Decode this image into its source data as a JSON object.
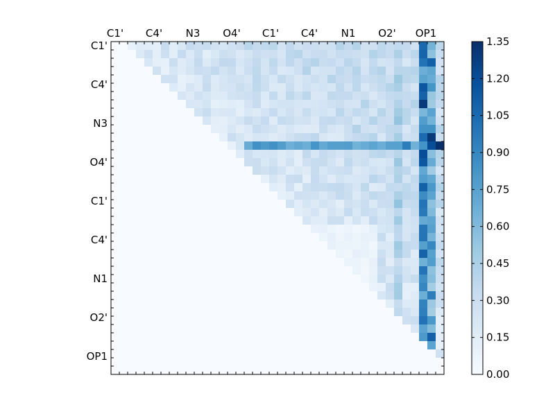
{
  "chart_data": {
    "type": "heatmap",
    "title": "",
    "xlabel": "",
    "ylabel": "",
    "n": 40,
    "row_labels": [
      "C1'",
      "C4'",
      "N3",
      "O4'",
      "C1'",
      "C4'",
      "N1",
      "O2'",
      "OP1"
    ],
    "row_label_positions": [
      0,
      4.67,
      9.33,
      14,
      18.67,
      23.33,
      28,
      32.67,
      37.33
    ],
    "col_labels": [
      "C1'",
      "C4'",
      "N3",
      "O4'",
      "C1'",
      "C4'",
      "N1",
      "O2'",
      "OP1"
    ],
    "col_label_positions": [
      0,
      4.67,
      9.33,
      14,
      18.67,
      23.33,
      28,
      32.67,
      37.33
    ],
    "colorbar": {
      "min": 0.0,
      "max": 1.35,
      "ticks": [
        "0.00",
        "0.15",
        "0.30",
        "0.45",
        "0.60",
        "0.75",
        "0.90",
        "1.05",
        "1.20",
        "1.35"
      ],
      "colormap": [
        "#f7fbff",
        "#deebf7",
        "#c6dbef",
        "#9ecae1",
        "#6baed6",
        "#4292c6",
        "#2171b5",
        "#08519c",
        "#08306b"
      ]
    },
    "features": {
      "strong_columns": [
        {
          "col": 37,
          "value": 1.1
        },
        {
          "col": 38,
          "value": 0.85
        },
        {
          "col": 34,
          "value": 0.55
        }
      ],
      "strong_rows": [
        {
          "row": 12,
          "value": 0.85
        }
      ],
      "peak_cells": [
        {
          "row": 12,
          "col": 39,
          "value": 1.35
        },
        {
          "row": 12,
          "col": 38,
          "value": 1.2
        },
        {
          "row": 7,
          "col": 37,
          "value": 1.3
        },
        {
          "row": 11,
          "col": 38,
          "value": 1.3
        },
        {
          "row": 13,
          "col": 37,
          "value": 1.2
        },
        {
          "row": 5,
          "col": 37,
          "value": 1.15
        },
        {
          "row": 2,
          "col": 38,
          "value": 1.1
        },
        {
          "row": 14,
          "col": 37,
          "value": 1.15
        },
        {
          "row": 35,
          "col": 38,
          "value": 1.1
        },
        {
          "row": 30,
          "col": 38,
          "value": 0.95
        },
        {
          "row": 24,
          "col": 38,
          "value": 0.9
        },
        {
          "row": 12,
          "col": 35,
          "value": 0.95
        }
      ]
    }
  }
}
